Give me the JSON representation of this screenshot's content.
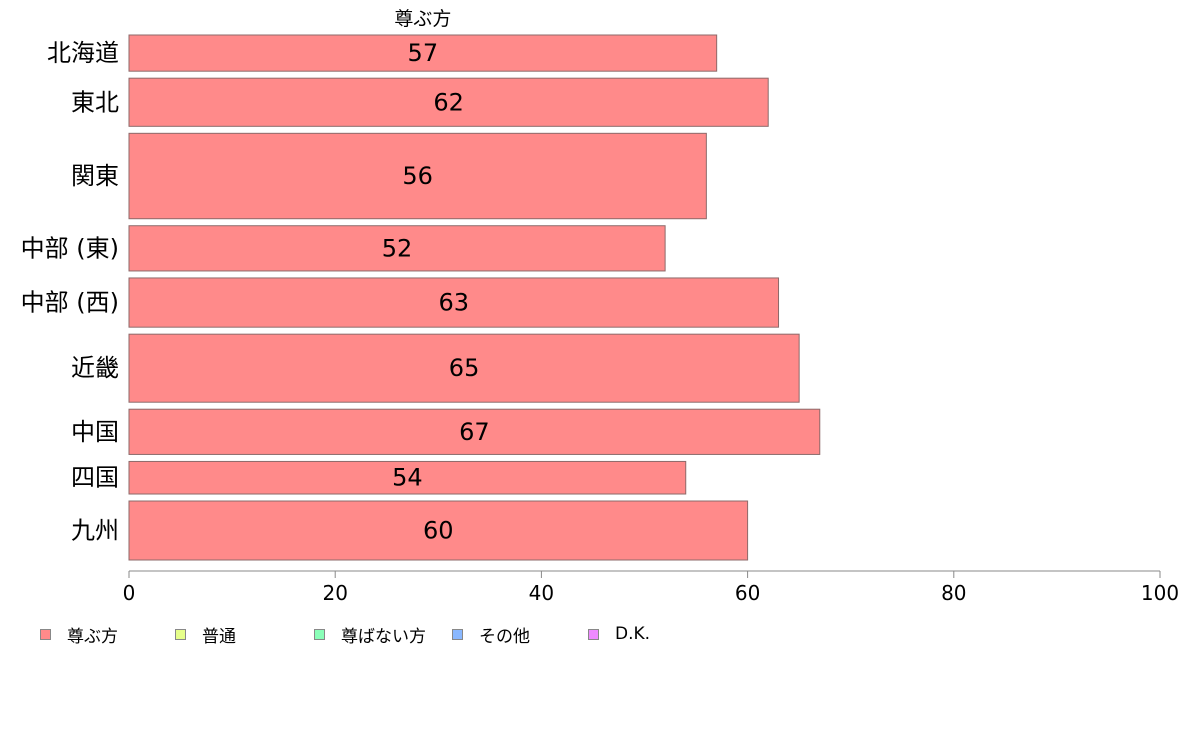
{
  "chart_data": {
    "type": "bar",
    "orientation": "horizontal",
    "title": "",
    "series_title": "尊ぶ方",
    "categories": [
      "北海道",
      "東北",
      "関東",
      "中部 (東)",
      "中部 (西)",
      "近畿",
      "中国",
      "四国",
      "九州"
    ],
    "series": [
      {
        "name": "尊ぶ方",
        "color": "#ff8a8a",
        "values": [
          57,
          62,
          56,
          52,
          63,
          65,
          67,
          54,
          60
        ],
        "value_labels": [
          "57",
          "62",
          "56",
          "52",
          "63",
          "65",
          "67",
          "54",
          "60"
        ]
      }
    ],
    "row_weights": [
      1.0,
      1.33,
      2.36,
      1.25,
      1.36,
      1.88,
      1.25,
      0.9,
      1.63
    ],
    "xlim": [
      0,
      100
    ],
    "xticks": [
      0,
      20,
      40,
      60,
      80,
      100
    ],
    "xtick_labels": [
      "0",
      "20",
      "40",
      "60",
      "80",
      "100"
    ],
    "xlabel": "",
    "ylabel": "",
    "grid": false,
    "legend_position": "bottom",
    "legend": [
      {
        "label": "尊ぶ方",
        "color": "#ff8a8a"
      },
      {
        "label": "普通",
        "color": "#e6ff8a"
      },
      {
        "label": "尊ばない方",
        "color": "#8affb8"
      },
      {
        "label": "その他",
        "color": "#8ab8ff"
      },
      {
        "label": "D.K.",
        "color": "#ee8aff"
      }
    ]
  }
}
